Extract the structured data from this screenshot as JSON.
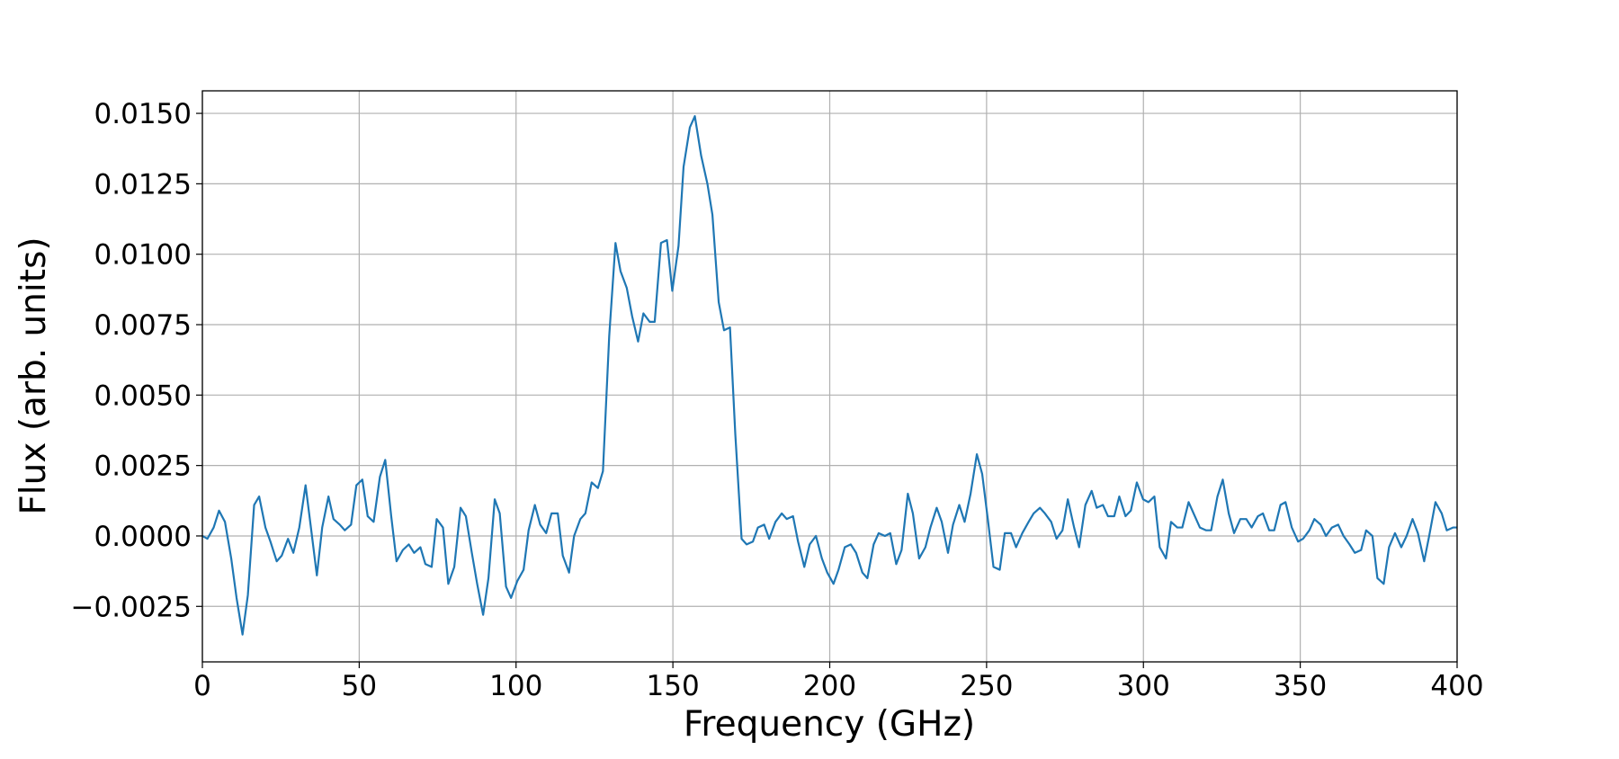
{
  "chart_data": {
    "type": "line",
    "xlabel": "Frequency (GHz)",
    "ylabel": "Flux (arb. units)",
    "color": "#1f77b4",
    "grid": true,
    "xlim": [
      0,
      400
    ],
    "xticks": [
      0,
      50,
      100,
      150,
      200,
      250,
      300,
      350,
      400
    ],
    "ylim": [
      -0.00447,
      0.0158
    ],
    "yticks": [
      {
        "value": -0.0025,
        "label": "−0.0025"
      },
      {
        "value": 0,
        "label": "0.0000"
      },
      0.0025,
      {
        "value": 0.005,
        "label": "0.0050"
      },
      0.0075,
      {
        "value": 0.01,
        "label": "0.0100"
      },
      0.0125,
      {
        "value": 0.015,
        "label": "0.0150"
      }
    ],
    "x": [
      0,
      1.6,
      3.6,
      5.3,
      7.2,
      9.2,
      10.9,
      12.8,
      14.5,
      16.5,
      18.1,
      20.1,
      21.7,
      23.7,
      25.3,
      27.3,
      29.0,
      30.9,
      32.9,
      34.6,
      36.5,
      38.2,
      40.2,
      41.8,
      43.8,
      45.4,
      47.4,
      49.1,
      51.0,
      52.7,
      54.6,
      56.6,
      58.3,
      60.2,
      61.9,
      63.9,
      65.8,
      67.5,
      69.5,
      71.1,
      73.1,
      74.7,
      76.7,
      78.4,
      80.3,
      82.3,
      84.0,
      85.9,
      87.6,
      89.5,
      91.2,
      93.2,
      94.8,
      96.8,
      98.4,
      100.4,
      102.4,
      104.0,
      106.0,
      107.7,
      109.6,
      111.3,
      113.3,
      114.9,
      116.9,
      118.5,
      120.5,
      122.1,
      124.1,
      126.1,
      127.7,
      129.7,
      131.7,
      133.3,
      135.3,
      137.0,
      138.9,
      140.6,
      142.6,
      144.2,
      146.2,
      148.1,
      149.8,
      151.8,
      153.4,
      155.4,
      157.0,
      159.0,
      161.0,
      162.6,
      164.6,
      166.3,
      168.2,
      169.9,
      171.9,
      173.5,
      175.5,
      177.1,
      179.1,
      180.7,
      182.7,
      184.7,
      186.3,
      188.3,
      189.9,
      191.9,
      193.6,
      195.6,
      197.5,
      199.2,
      201.2,
      202.8,
      204.8,
      206.7,
      208.4,
      210.4,
      212.0,
      214.0,
      215.6,
      217.6,
      219.3,
      221.2,
      222.9,
      224.9,
      226.5,
      228.5,
      230.5,
      232.1,
      234.1,
      235.7,
      237.7,
      239.3,
      241.3,
      243.0,
      244.9,
      246.9,
      248.6,
      250.5,
      252.2,
      254.2,
      255.8,
      257.8,
      259.4,
      261.4,
      263.4,
      265.0,
      267.0,
      268.6,
      270.6,
      272.3,
      274.2,
      275.9,
      277.9,
      279.5,
      281.5,
      283.5,
      285.1,
      287.1,
      288.7,
      290.7,
      292.3,
      294.3,
      296.0,
      297.9,
      299.9,
      301.6,
      303.5,
      305.2,
      307.2,
      308.8,
      310.8,
      312.4,
      314.4,
      316.4,
      318.0,
      320.0,
      321.6,
      323.6,
      325.3,
      327.2,
      328.9,
      330.9,
      332.8,
      334.5,
      336.5,
      338.1,
      340.1,
      341.7,
      343.7,
      345.3,
      347.3,
      349.3,
      350.9,
      352.9,
      354.5,
      356.5,
      358.2,
      360.1,
      362.1,
      363.8,
      365.7,
      367.4,
      369.4,
      371.0,
      373.0,
      374.6,
      376.6,
      378.3,
      380.2,
      382.2,
      383.9,
      385.8,
      387.5,
      389.5,
      391.1,
      393.1,
      395.1,
      396.7,
      398.7,
      400
    ],
    "values": [
      0,
      -0.0001,
      0.0003,
      0.0009,
      0.0005,
      -0.0008,
      -0.0022,
      -0.0035,
      -0.0021,
      0.0011,
      0.0014,
      0.0003,
      -0.0002,
      -0.0009,
      -0.0007,
      -0.0001,
      -0.0006,
      0.0003,
      0.0018,
      0.0003,
      -0.0014,
      0.0003,
      0.0014,
      0.0006,
      0.0004,
      0.0002,
      0.0004,
      0.0018,
      0.002,
      0.0007,
      0.0005,
      0.0021,
      0.0027,
      0.0007,
      -0.0009,
      -0.0005,
      -0.0003,
      -0.0006,
      -0.0004,
      -0.001,
      -0.0011,
      0.0006,
      0.0003,
      -0.0017,
      -0.0011,
      0.001,
      0.0007,
      -0.0006,
      -0.0017,
      -0.0028,
      -0.0015,
      0.0013,
      0.0008,
      -0.0018,
      -0.0022,
      -0.0016,
      -0.0012,
      0.0002,
      0.0011,
      0.0004,
      0.0001,
      0.0008,
      0.0008,
      -0.0007,
      -0.0013,
      0,
      0.0006,
      0.0008,
      0.0019,
      0.0017,
      0.0023,
      0.0071,
      0.0104,
      0.0094,
      0.0088,
      0.0078,
      0.0069,
      0.0079,
      0.0076,
      0.0076,
      0.0104,
      0.0105,
      0.0087,
      0.0103,
      0.0131,
      0.0145,
      0.0149,
      0.0135,
      0.0125,
      0.0114,
      0.0083,
      0.0073,
      0.0074,
      0.0036,
      -0.0001,
      -0.0003,
      -0.0002,
      0.0003,
      0.0004,
      -0.0001,
      0.0005,
      0.0008,
      0.0006,
      0.0007,
      -0.0002,
      -0.0011,
      -0.0003,
      0,
      -0.0008,
      -0.0013,
      -0.0017,
      -0.0012,
      -0.0004,
      -0.0003,
      -0.0006,
      -0.0013,
      -0.0015,
      -0.0003,
      0.0001,
      0,
      0.0001,
      -0.001,
      -0.0005,
      0.0015,
      0.0008,
      -0.0008,
      -0.0004,
      0.0003,
      0.001,
      0.0005,
      -0.0006,
      0.0004,
      0.0011,
      0.0005,
      0.0015,
      0.0029,
      0.0022,
      0.0005,
      -0.0011,
      -0.0012,
      0.0001,
      0.0001,
      -0.0004,
      0.0001,
      0.0005,
      0.0008,
      0.001,
      0.0008,
      0.0005,
      -0.0001,
      0.0002,
      0.0013,
      0.0003,
      -0.0004,
      0.0011,
      0.0016,
      0.001,
      0.0011,
      0.0007,
      0.0007,
      0.0014,
      0.0007,
      0.0009,
      0.0019,
      0.0013,
      0.0012,
      0.0014,
      -0.0004,
      -0.0008,
      0.0005,
      0.0003,
      0.0003,
      0.0012,
      0.0007,
      0.0003,
      0.0002,
      0.0002,
      0.0014,
      0.002,
      0.0008,
      0.0001,
      0.0006,
      0.0006,
      0.0003,
      0.0007,
      0.0008,
      0.0002,
      0.0002,
      0.0011,
      0.0012,
      0.0003,
      -0.0002,
      -0.0001,
      0.0002,
      0.0006,
      0.0004,
      0,
      0.0003,
      0.0004,
      0,
      -0.0003,
      -0.0006,
      -0.0005,
      0.0002,
      0,
      -0.0015,
      -0.0017,
      -0.0004,
      0.0001,
      -0.0004,
      0,
      0.0006,
      0.0001,
      -0.0009,
      0,
      0.0012,
      0.0008,
      0.0002,
      0.0003,
      0.0003
    ]
  }
}
